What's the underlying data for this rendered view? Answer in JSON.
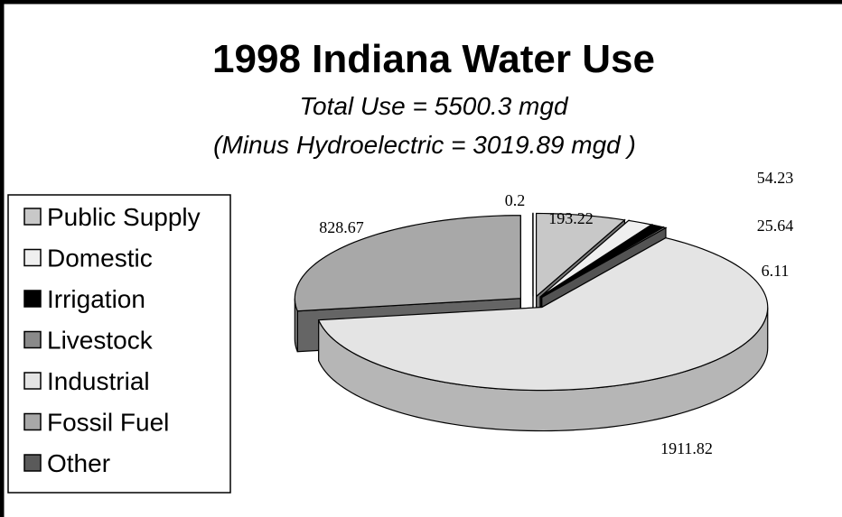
{
  "chart_data": {
    "type": "pie3d",
    "title": "1998 Indiana Water Use",
    "subtitle": [
      "Total Use = 5500.3 mgd",
      "(Minus Hydroelectric = 3019.89  mgd )"
    ],
    "categories": [
      "Public Supply",
      "Domestic",
      "Irrigation",
      "Livestock",
      "Industrial",
      "Fossil Fuel",
      "Other"
    ],
    "values": [
      193.22,
      54.23,
      25.64,
      6.11,
      1911.82,
      828.67,
      0.2
    ],
    "colors": [
      "#c8c8c8",
      "#efefef",
      "#000000",
      "#8a8a8a",
      "#e4e4e4",
      "#a8a8a8",
      "#5a5a5a"
    ],
    "legend": "left"
  }
}
